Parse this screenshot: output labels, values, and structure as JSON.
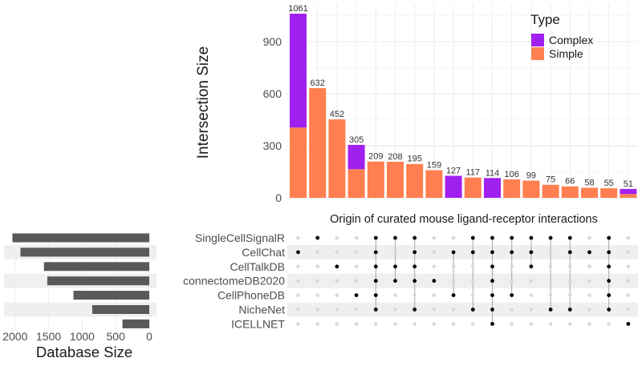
{
  "chart_data": {
    "type": "upset",
    "title": "Origin of curated mouse ligand-receptor interactions",
    "intersection_chart": {
      "type": "bar",
      "ylabel": "Intersection Size",
      "ylim": [
        0,
        1100
      ],
      "yticks": [
        0,
        300,
        600,
        900
      ],
      "legend": {
        "title": "Type",
        "position": "top-right"
      },
      "series": [
        {
          "name": "Simple",
          "color": "#FF7F50",
          "values": [
            405,
            632,
            452,
            165,
            209,
            208,
            195,
            159,
            0,
            117,
            0,
            106,
            99,
            75,
            66,
            58,
            55,
            22
          ]
        },
        {
          "name": "Complex",
          "color": "#A020F0",
          "values": [
            656,
            0,
            0,
            140,
            0,
            0,
            0,
            0,
            127,
            0,
            114,
            0,
            0,
            0,
            0,
            0,
            0,
            29
          ]
        }
      ],
      "totals": [
        1061,
        632,
        452,
        305,
        209,
        208,
        195,
        159,
        127,
        117,
        114,
        106,
        99,
        75,
        66,
        58,
        55,
        51
      ]
    },
    "sets": {
      "names": [
        "SingleCellSignalR",
        "CellChat",
        "CellTalkDB",
        "connectomeDB2020",
        "CellPhoneDB",
        "NicheNet",
        "ICELLNET"
      ],
      "sizes": [
        2040,
        1920,
        1570,
        1520,
        1130,
        850,
        400
      ],
      "xlabel": "Database Size",
      "xticks": [
        2000,
        1500,
        1000,
        500,
        0
      ],
      "xlim": [
        2150,
        0
      ],
      "color": "#595959"
    },
    "matrix": {
      "members": [
        [
          1
        ],
        [
          0
        ],
        [
          2
        ],
        [
          4
        ],
        [
          0,
          1,
          2,
          3,
          4,
          5
        ],
        [
          0,
          2,
          3
        ],
        [
          0,
          1,
          2,
          3,
          5
        ],
        [
          3
        ],
        [
          1,
          4
        ],
        [
          0,
          1,
          5
        ],
        [
          0,
          1,
          2,
          3,
          4,
          5,
          6
        ],
        [
          0,
          1,
          4
        ],
        [
          0,
          1,
          2
        ],
        [
          0,
          5
        ],
        [
          0,
          1,
          5
        ],
        [
          1
        ],
        [
          0,
          1,
          2,
          3,
          4,
          5
        ],
        [
          6
        ]
      ],
      "active_color": "#000000",
      "inactive_color": "#D9D9D9"
    }
  }
}
